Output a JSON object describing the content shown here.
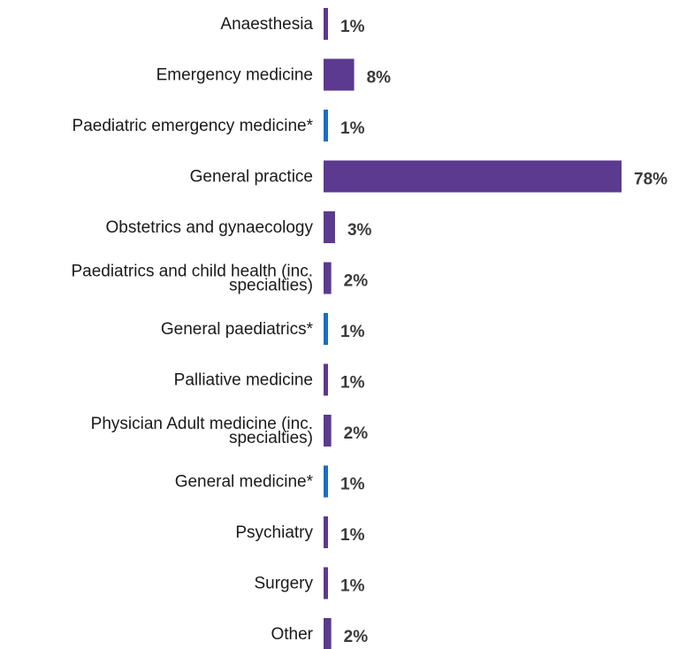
{
  "chart_data": {
    "type": "bar",
    "orientation": "horizontal",
    "title": "",
    "xlabel": "",
    "ylabel": "",
    "xlim": [
      0,
      78
    ],
    "grid": false,
    "legend": "none",
    "value_suffix": "%",
    "colors": {
      "specialty": "#5b3a8f",
      "subspecialty": "#1a6ec0"
    },
    "categories": [
      {
        "label": [
          "Anaesthesia"
        ],
        "value": 1,
        "group": "specialty"
      },
      {
        "label": [
          "Emergency medicine"
        ],
        "value": 8,
        "group": "specialty"
      },
      {
        "label": [
          "Paediatric emergency medicine*"
        ],
        "value": 1,
        "group": "subspecialty"
      },
      {
        "label": [
          "General practice"
        ],
        "value": 78,
        "group": "specialty"
      },
      {
        "label": [
          "Obstetrics and gynaecology"
        ],
        "value": 3,
        "group": "specialty"
      },
      {
        "label": [
          "Paediatrics and child health (inc.",
          "specialties)"
        ],
        "value": 2,
        "group": "specialty"
      },
      {
        "label": [
          "General paediatrics*"
        ],
        "value": 1,
        "group": "subspecialty"
      },
      {
        "label": [
          "Palliative medicine"
        ],
        "value": 1,
        "group": "specialty"
      },
      {
        "label": [
          "Physician Adult medicine (inc.",
          "specialties)"
        ],
        "value": 2,
        "group": "specialty"
      },
      {
        "label": [
          "General medicine*"
        ],
        "value": 1,
        "group": "subspecialty"
      },
      {
        "label": [
          "Psychiatry"
        ],
        "value": 1,
        "group": "specialty"
      },
      {
        "label": [
          "Surgery"
        ],
        "value": 1,
        "group": "specialty"
      },
      {
        "label": [
          "Other"
        ],
        "value": 2,
        "group": "specialty"
      }
    ]
  }
}
